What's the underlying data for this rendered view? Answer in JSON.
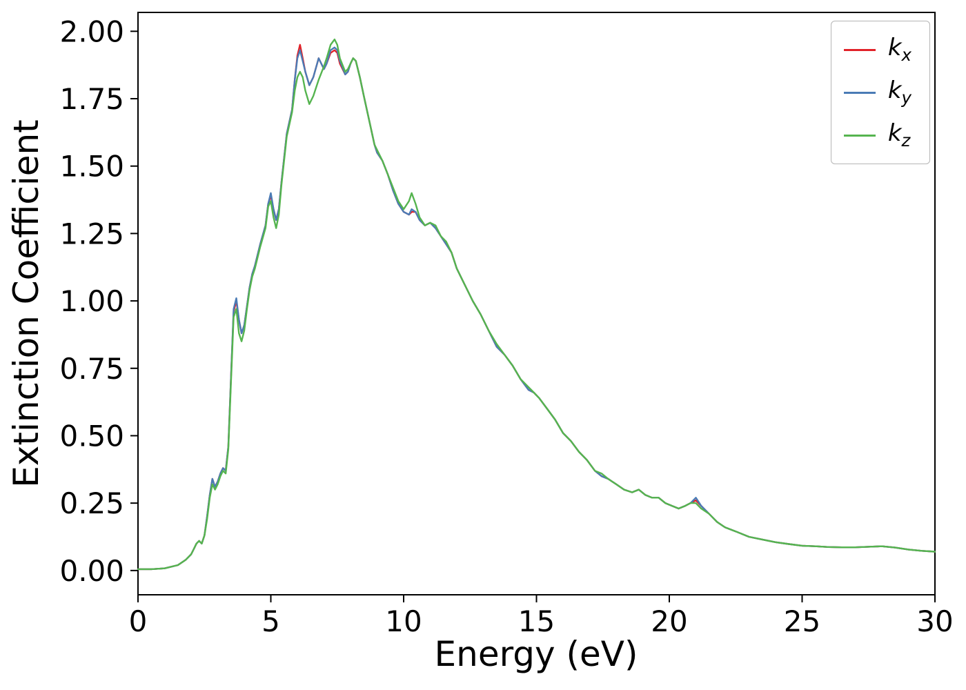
{
  "chart_data": {
    "type": "line",
    "title": "",
    "xlabel": "Energy (eV)",
    "ylabel": "Extinction Coefficient",
    "xlim": [
      0,
      30
    ],
    "ylim": [
      0,
      2.0
    ],
    "grid": false,
    "legend_position": "upper right",
    "xticks": [
      0,
      5,
      10,
      15,
      20,
      25,
      30
    ],
    "xtick_labels": [
      "0",
      "5",
      "10",
      "15",
      "20",
      "25",
      "30"
    ],
    "yticks": [
      0,
      0.25,
      0.5,
      0.75,
      1.0,
      1.25,
      1.5,
      1.75,
      2.0
    ],
    "ytick_labels": [
      "0.00",
      "0.25",
      "0.50",
      "0.75",
      "1.00",
      "1.25",
      "1.50",
      "1.75",
      "2.00"
    ],
    "x": [
      0,
      0.5,
      1.0,
      1.5,
      1.8,
      2.0,
      2.1,
      2.2,
      2.3,
      2.4,
      2.5,
      2.6,
      2.7,
      2.8,
      2.9,
      3.0,
      3.1,
      3.2,
      3.3,
      3.4,
      3.5,
      3.6,
      3.7,
      3.8,
      3.9,
      4.0,
      4.1,
      4.2,
      4.3,
      4.4,
      4.6,
      4.8,
      4.9,
      5.0,
      5.1,
      5.2,
      5.3,
      5.4,
      5.6,
      5.8,
      5.9,
      6.0,
      6.1,
      6.2,
      6.3,
      6.45,
      6.6,
      6.8,
      7.0,
      7.1,
      7.25,
      7.4,
      7.5,
      7.6,
      7.8,
      7.9,
      8.0,
      8.1,
      8.2,
      8.35,
      8.5,
      8.7,
      8.9,
      9.0,
      9.2,
      9.4,
      9.6,
      9.8,
      10.0,
      10.2,
      10.3,
      10.45,
      10.6,
      10.8,
      11.0,
      11.2,
      11.4,
      11.6,
      11.8,
      12.0,
      12.3,
      12.6,
      12.9,
      13.2,
      13.5,
      13.8,
      14.1,
      14.4,
      14.7,
      14.9,
      15.1,
      15.4,
      15.7,
      16.0,
      16.3,
      16.6,
      16.9,
      17.2,
      17.45,
      17.7,
      18.0,
      18.3,
      18.6,
      18.85,
      19.1,
      19.35,
      19.6,
      19.85,
      20.1,
      20.35,
      20.6,
      20.8,
      21.0,
      21.2,
      21.5,
      21.8,
      22.1,
      22.5,
      23.0,
      23.5,
      24.0,
      24.5,
      25.0,
      25.5,
      26.0,
      26.5,
      27.0,
      27.5,
      28.0,
      28.5,
      29.0,
      29.5,
      30.0
    ],
    "series": [
      {
        "name": "kx",
        "label_main": "k",
        "label_sub": "x",
        "color": "#e12229",
        "values": [
          0.005,
          0.005,
          0.008,
          0.02,
          0.04,
          0.06,
          0.08,
          0.1,
          0.11,
          0.1,
          0.13,
          0.2,
          0.28,
          0.34,
          0.31,
          0.33,
          0.36,
          0.38,
          0.37,
          0.46,
          0.72,
          0.96,
          1.0,
          0.93,
          0.88,
          0.91,
          0.98,
          1.05,
          1.1,
          1.13,
          1.21,
          1.28,
          1.36,
          1.39,
          1.34,
          1.3,
          1.34,
          1.44,
          1.62,
          1.71,
          1.82,
          1.91,
          1.95,
          1.9,
          1.85,
          1.8,
          1.83,
          1.9,
          1.86,
          1.88,
          1.92,
          1.93,
          1.92,
          1.88,
          1.84,
          1.85,
          1.88,
          1.9,
          1.89,
          1.83,
          1.76,
          1.67,
          1.58,
          1.55,
          1.52,
          1.47,
          1.41,
          1.36,
          1.33,
          1.32,
          1.33,
          1.33,
          1.3,
          1.28,
          1.29,
          1.27,
          1.24,
          1.21,
          1.18,
          1.12,
          1.06,
          1.0,
          0.95,
          0.89,
          0.83,
          0.8,
          0.76,
          0.71,
          0.67,
          0.66,
          0.64,
          0.6,
          0.56,
          0.51,
          0.48,
          0.44,
          0.41,
          0.37,
          0.35,
          0.34,
          0.32,
          0.3,
          0.29,
          0.3,
          0.28,
          0.27,
          0.27,
          0.25,
          0.24,
          0.23,
          0.24,
          0.25,
          0.26,
          0.24,
          0.21,
          0.18,
          0.16,
          0.145,
          0.125,
          0.115,
          0.105,
          0.098,
          0.092,
          0.09,
          0.087,
          0.086,
          0.086,
          0.088,
          0.09,
          0.085,
          0.078,
          0.073,
          0.07
        ]
      },
      {
        "name": "ky",
        "label_main": "k",
        "label_sub": "y",
        "color": "#4a7bb5",
        "values": [
          0.005,
          0.005,
          0.008,
          0.02,
          0.04,
          0.06,
          0.08,
          0.1,
          0.11,
          0.1,
          0.13,
          0.2,
          0.28,
          0.34,
          0.31,
          0.33,
          0.36,
          0.38,
          0.37,
          0.46,
          0.72,
          0.97,
          1.01,
          0.93,
          0.88,
          0.91,
          0.98,
          1.05,
          1.1,
          1.13,
          1.21,
          1.28,
          1.36,
          1.4,
          1.34,
          1.3,
          1.34,
          1.44,
          1.62,
          1.71,
          1.82,
          1.9,
          1.93,
          1.89,
          1.85,
          1.8,
          1.83,
          1.9,
          1.86,
          1.88,
          1.93,
          1.94,
          1.93,
          1.89,
          1.84,
          1.85,
          1.88,
          1.9,
          1.89,
          1.83,
          1.76,
          1.67,
          1.58,
          1.55,
          1.52,
          1.47,
          1.41,
          1.36,
          1.33,
          1.32,
          1.34,
          1.33,
          1.3,
          1.28,
          1.29,
          1.27,
          1.24,
          1.21,
          1.18,
          1.12,
          1.06,
          1.0,
          0.95,
          0.89,
          0.83,
          0.8,
          0.76,
          0.71,
          0.67,
          0.66,
          0.64,
          0.6,
          0.56,
          0.51,
          0.48,
          0.44,
          0.41,
          0.37,
          0.35,
          0.34,
          0.32,
          0.3,
          0.29,
          0.3,
          0.28,
          0.27,
          0.27,
          0.25,
          0.24,
          0.23,
          0.24,
          0.25,
          0.27,
          0.24,
          0.21,
          0.18,
          0.16,
          0.145,
          0.125,
          0.115,
          0.105,
          0.098,
          0.092,
          0.09,
          0.087,
          0.086,
          0.086,
          0.088,
          0.09,
          0.085,
          0.078,
          0.073,
          0.07
        ]
      },
      {
        "name": "kz",
        "label_main": "k",
        "label_sub": "z",
        "color": "#55b44f",
        "values": [
          0.005,
          0.005,
          0.008,
          0.02,
          0.04,
          0.06,
          0.08,
          0.1,
          0.11,
          0.1,
          0.13,
          0.19,
          0.27,
          0.32,
          0.3,
          0.32,
          0.35,
          0.37,
          0.36,
          0.45,
          0.7,
          0.94,
          0.97,
          0.88,
          0.85,
          0.89,
          0.97,
          1.04,
          1.09,
          1.12,
          1.2,
          1.27,
          1.35,
          1.37,
          1.31,
          1.27,
          1.32,
          1.43,
          1.61,
          1.7,
          1.78,
          1.83,
          1.85,
          1.83,
          1.78,
          1.73,
          1.76,
          1.82,
          1.87,
          1.9,
          1.95,
          1.97,
          1.95,
          1.9,
          1.85,
          1.86,
          1.88,
          1.9,
          1.89,
          1.83,
          1.76,
          1.67,
          1.58,
          1.56,
          1.52,
          1.47,
          1.42,
          1.37,
          1.34,
          1.37,
          1.4,
          1.36,
          1.31,
          1.28,
          1.29,
          1.28,
          1.24,
          1.22,
          1.18,
          1.12,
          1.06,
          1.0,
          0.95,
          0.89,
          0.84,
          0.8,
          0.76,
          0.71,
          0.68,
          0.66,
          0.64,
          0.6,
          0.56,
          0.51,
          0.48,
          0.44,
          0.41,
          0.37,
          0.36,
          0.34,
          0.32,
          0.3,
          0.29,
          0.3,
          0.28,
          0.27,
          0.27,
          0.25,
          0.24,
          0.23,
          0.24,
          0.25,
          0.25,
          0.23,
          0.21,
          0.18,
          0.16,
          0.145,
          0.125,
          0.115,
          0.105,
          0.098,
          0.092,
          0.09,
          0.087,
          0.086,
          0.086,
          0.088,
          0.09,
          0.085,
          0.078,
          0.073,
          0.07
        ]
      }
    ]
  }
}
